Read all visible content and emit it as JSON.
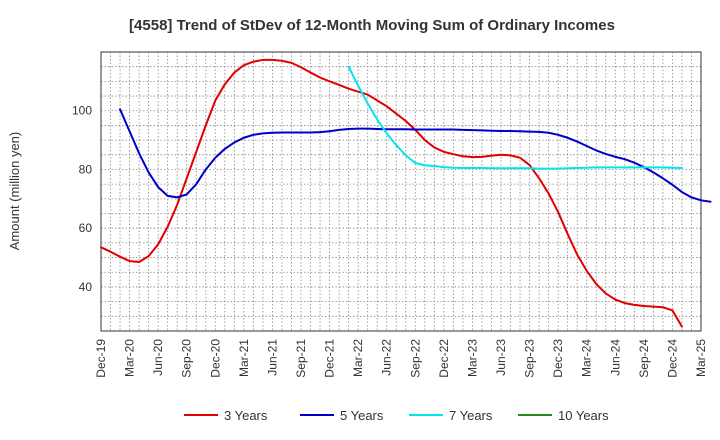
{
  "chart_data": {
    "type": "line",
    "title": "[4558]  Trend of StDev of 12-Month Moving Sum of Ordinary Incomes",
    "ylabel": "Amount (million yen)",
    "xlabel": "",
    "ylim": [
      25,
      120
    ],
    "yticks": [
      40,
      60,
      80,
      100
    ],
    "x_ticks": [
      "Dec-19",
      "Mar-20",
      "Jun-20",
      "Sep-20",
      "Dec-20",
      "Mar-21",
      "Jun-21",
      "Sep-21",
      "Dec-21",
      "Mar-22",
      "Jun-22",
      "Sep-22",
      "Dec-22",
      "Mar-23",
      "Jun-23",
      "Sep-23",
      "Dec-23",
      "Mar-24",
      "Jun-24",
      "Sep-24",
      "Dec-24",
      "Mar-25"
    ],
    "grid": true,
    "legend_position": "bottom",
    "series": [
      {
        "name": "3 Years",
        "color": "#e00000",
        "start_month_index": 0,
        "values": [
          53.5,
          52,
          50.3,
          48.8,
          48.5,
          50.5,
          54.5,
          60.5,
          68,
          77,
          86,
          95,
          103.5,
          109,
          113,
          115.5,
          116.7,
          117.3,
          117.3,
          117,
          116.3,
          114.8,
          113,
          111.3,
          110,
          108.8,
          107.5,
          106.5,
          105.5,
          103.5,
          101.5,
          99,
          96.5,
          93.5,
          90,
          87.5,
          86,
          85.2,
          84.5,
          84.2,
          84.3,
          84.7,
          85,
          84.8,
          84,
          81.5,
          77,
          71.8,
          65.5,
          58,
          51,
          45.5,
          41,
          37.8,
          35.7,
          34.5,
          33.9,
          33.5,
          33.3,
          33.1,
          32,
          26.5
        ]
      },
      {
        "name": "5 Years",
        "color": "#0000cc",
        "start_month_index": 2,
        "values": [
          100.5,
          93,
          85.5,
          79,
          74,
          71,
          70.5,
          71.5,
          75,
          80,
          84,
          87,
          89.2,
          90.8,
          91.8,
          92.3,
          92.5,
          92.6,
          92.6,
          92.6,
          92.6,
          92.7,
          93,
          93.5,
          93.8,
          93.9,
          93.9,
          93.8,
          93.7,
          93.7,
          93.7,
          93.6,
          93.6,
          93.6,
          93.6,
          93.6,
          93.5,
          93.4,
          93.3,
          93.2,
          93.1,
          93.1,
          93,
          92.9,
          92.8,
          92.5,
          91.8,
          90.8,
          89.5,
          88,
          86.5,
          85.3,
          84.3,
          83.5,
          82.3,
          80.8,
          79,
          77,
          74.8,
          72.3,
          70.5,
          69.5,
          69
        ]
      },
      {
        "name": "7 Years",
        "color": "#00e5ee",
        "start_month_index": 26,
        "values": [
          115,
          108.5,
          102.5,
          97,
          92.3,
          88.3,
          84.8,
          82.2,
          81.4,
          81.2,
          80.8,
          80.6,
          80.5,
          80.5,
          80.5,
          80.4,
          80.4,
          80.4,
          80.4,
          80.4,
          80.3,
          80.3,
          80.3,
          80.4,
          80.5,
          80.6,
          80.7,
          80.7,
          80.7,
          80.7,
          80.7,
          80.7,
          80.7,
          80.7,
          80.6,
          80.5
        ]
      },
      {
        "name": "10 Years",
        "color": "#228b22",
        "start_month_index": 0,
        "values": []
      }
    ]
  }
}
